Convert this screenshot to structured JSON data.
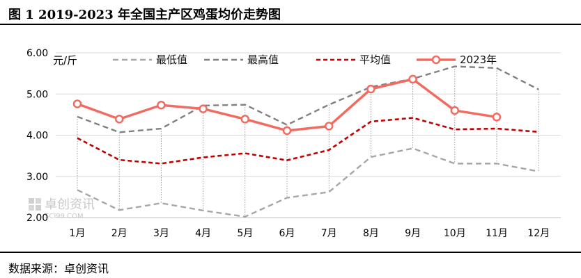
{
  "title": "图 1 2019-2023 年全国主产区鸡蛋均价走势图",
  "source": "数据来源：卓创资讯",
  "watermark": {
    "name": "卓创资讯",
    "site": "SCI99.COM"
  },
  "colors": {
    "min": "#a6a6a6",
    "max": "#808080",
    "avg": "#c00000",
    "y2023": "#f26b61"
  },
  "chart_data": {
    "type": "line",
    "title": "图 1 2019-2023 年全国主产区鸡蛋均价走势图",
    "unit": "元/斤",
    "categories": [
      "1月",
      "2月",
      "3月",
      "4月",
      "5月",
      "6月",
      "7月",
      "8月",
      "9月",
      "10月",
      "11月",
      "12月"
    ],
    "yticks": [
      "2.00",
      "3.00",
      "4.00",
      "5.00",
      "6.00"
    ],
    "ylim": [
      2,
      6
    ],
    "grid": "horizontal",
    "legend_position": "top",
    "series": [
      {
        "name": "最低值",
        "style": "dashed",
        "color": "#a6a6a6",
        "values": [
          2.67,
          2.18,
          2.35,
          2.17,
          2.02,
          2.48,
          2.62,
          3.47,
          3.68,
          3.31,
          3.31,
          3.12
        ]
      },
      {
        "name": "最高值",
        "style": "dashed",
        "color": "#808080",
        "values": [
          4.45,
          4.07,
          4.16,
          4.72,
          4.74,
          4.25,
          4.74,
          5.17,
          5.37,
          5.67,
          5.63,
          5.11
        ]
      },
      {
        "name": "平均值",
        "style": "dashed",
        "color": "#c00000",
        "values": [
          3.93,
          3.4,
          3.31,
          3.46,
          3.56,
          3.39,
          3.64,
          4.33,
          4.42,
          4.14,
          4.16,
          4.08
        ]
      },
      {
        "name": "2023年",
        "style": "solid-marker",
        "color": "#f26b61",
        "values": [
          4.76,
          4.39,
          4.73,
          4.64,
          4.39,
          4.11,
          4.22,
          5.12,
          5.36,
          4.6,
          4.44,
          null
        ]
      }
    ]
  }
}
